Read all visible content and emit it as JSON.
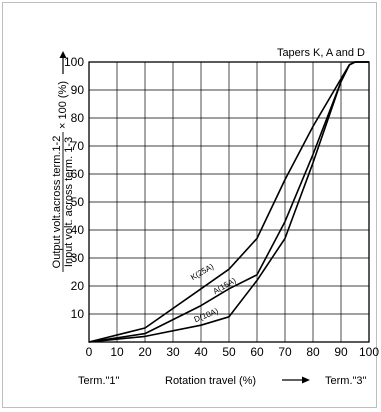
{
  "chart_data": {
    "type": "line",
    "title": "Tapers K, A and D",
    "xlabel": "Rotation travel (%)",
    "ylabel_top": "Output volt.across term.1-2",
    "ylabel_bottom": "Input volt. across term. 1-3",
    "ylabel_suffix": "× 100 (%)",
    "x_left_label": "Term.\"1\"",
    "x_right_label": "Term.\"3\"",
    "xlim": [
      0,
      100
    ],
    "ylim": [
      0,
      100
    ],
    "grid": true,
    "x_ticks": [
      "0",
      "10",
      "20",
      "30",
      "40",
      "50",
      "60",
      "70",
      "80",
      "90",
      "100"
    ],
    "y_ticks": [
      "10",
      "20",
      "30",
      "40",
      "50",
      "60",
      "70",
      "80",
      "90",
      "100"
    ],
    "series": [
      {
        "name": "K(25A)",
        "x": [
          0,
          20,
          40,
          50,
          60,
          70,
          80,
          90,
          93,
          95,
          100
        ],
        "y": [
          0,
          5,
          19,
          26,
          37,
          58,
          77,
          94,
          99,
          100,
          100
        ]
      },
      {
        "name": "A(15A)",
        "x": [
          0,
          20,
          40,
          50,
          60,
          70,
          80,
          90,
          93,
          95,
          100
        ],
        "y": [
          0,
          3,
          13,
          19,
          24,
          43,
          67,
          93,
          99,
          100,
          100
        ]
      },
      {
        "name": "D(10A)",
        "x": [
          0,
          20,
          40,
          50,
          60,
          70,
          80,
          90,
          93,
          95,
          100
        ],
        "y": [
          0,
          2,
          6,
          9,
          22,
          37,
          64,
          93,
          99,
          100,
          100
        ]
      }
    ]
  }
}
